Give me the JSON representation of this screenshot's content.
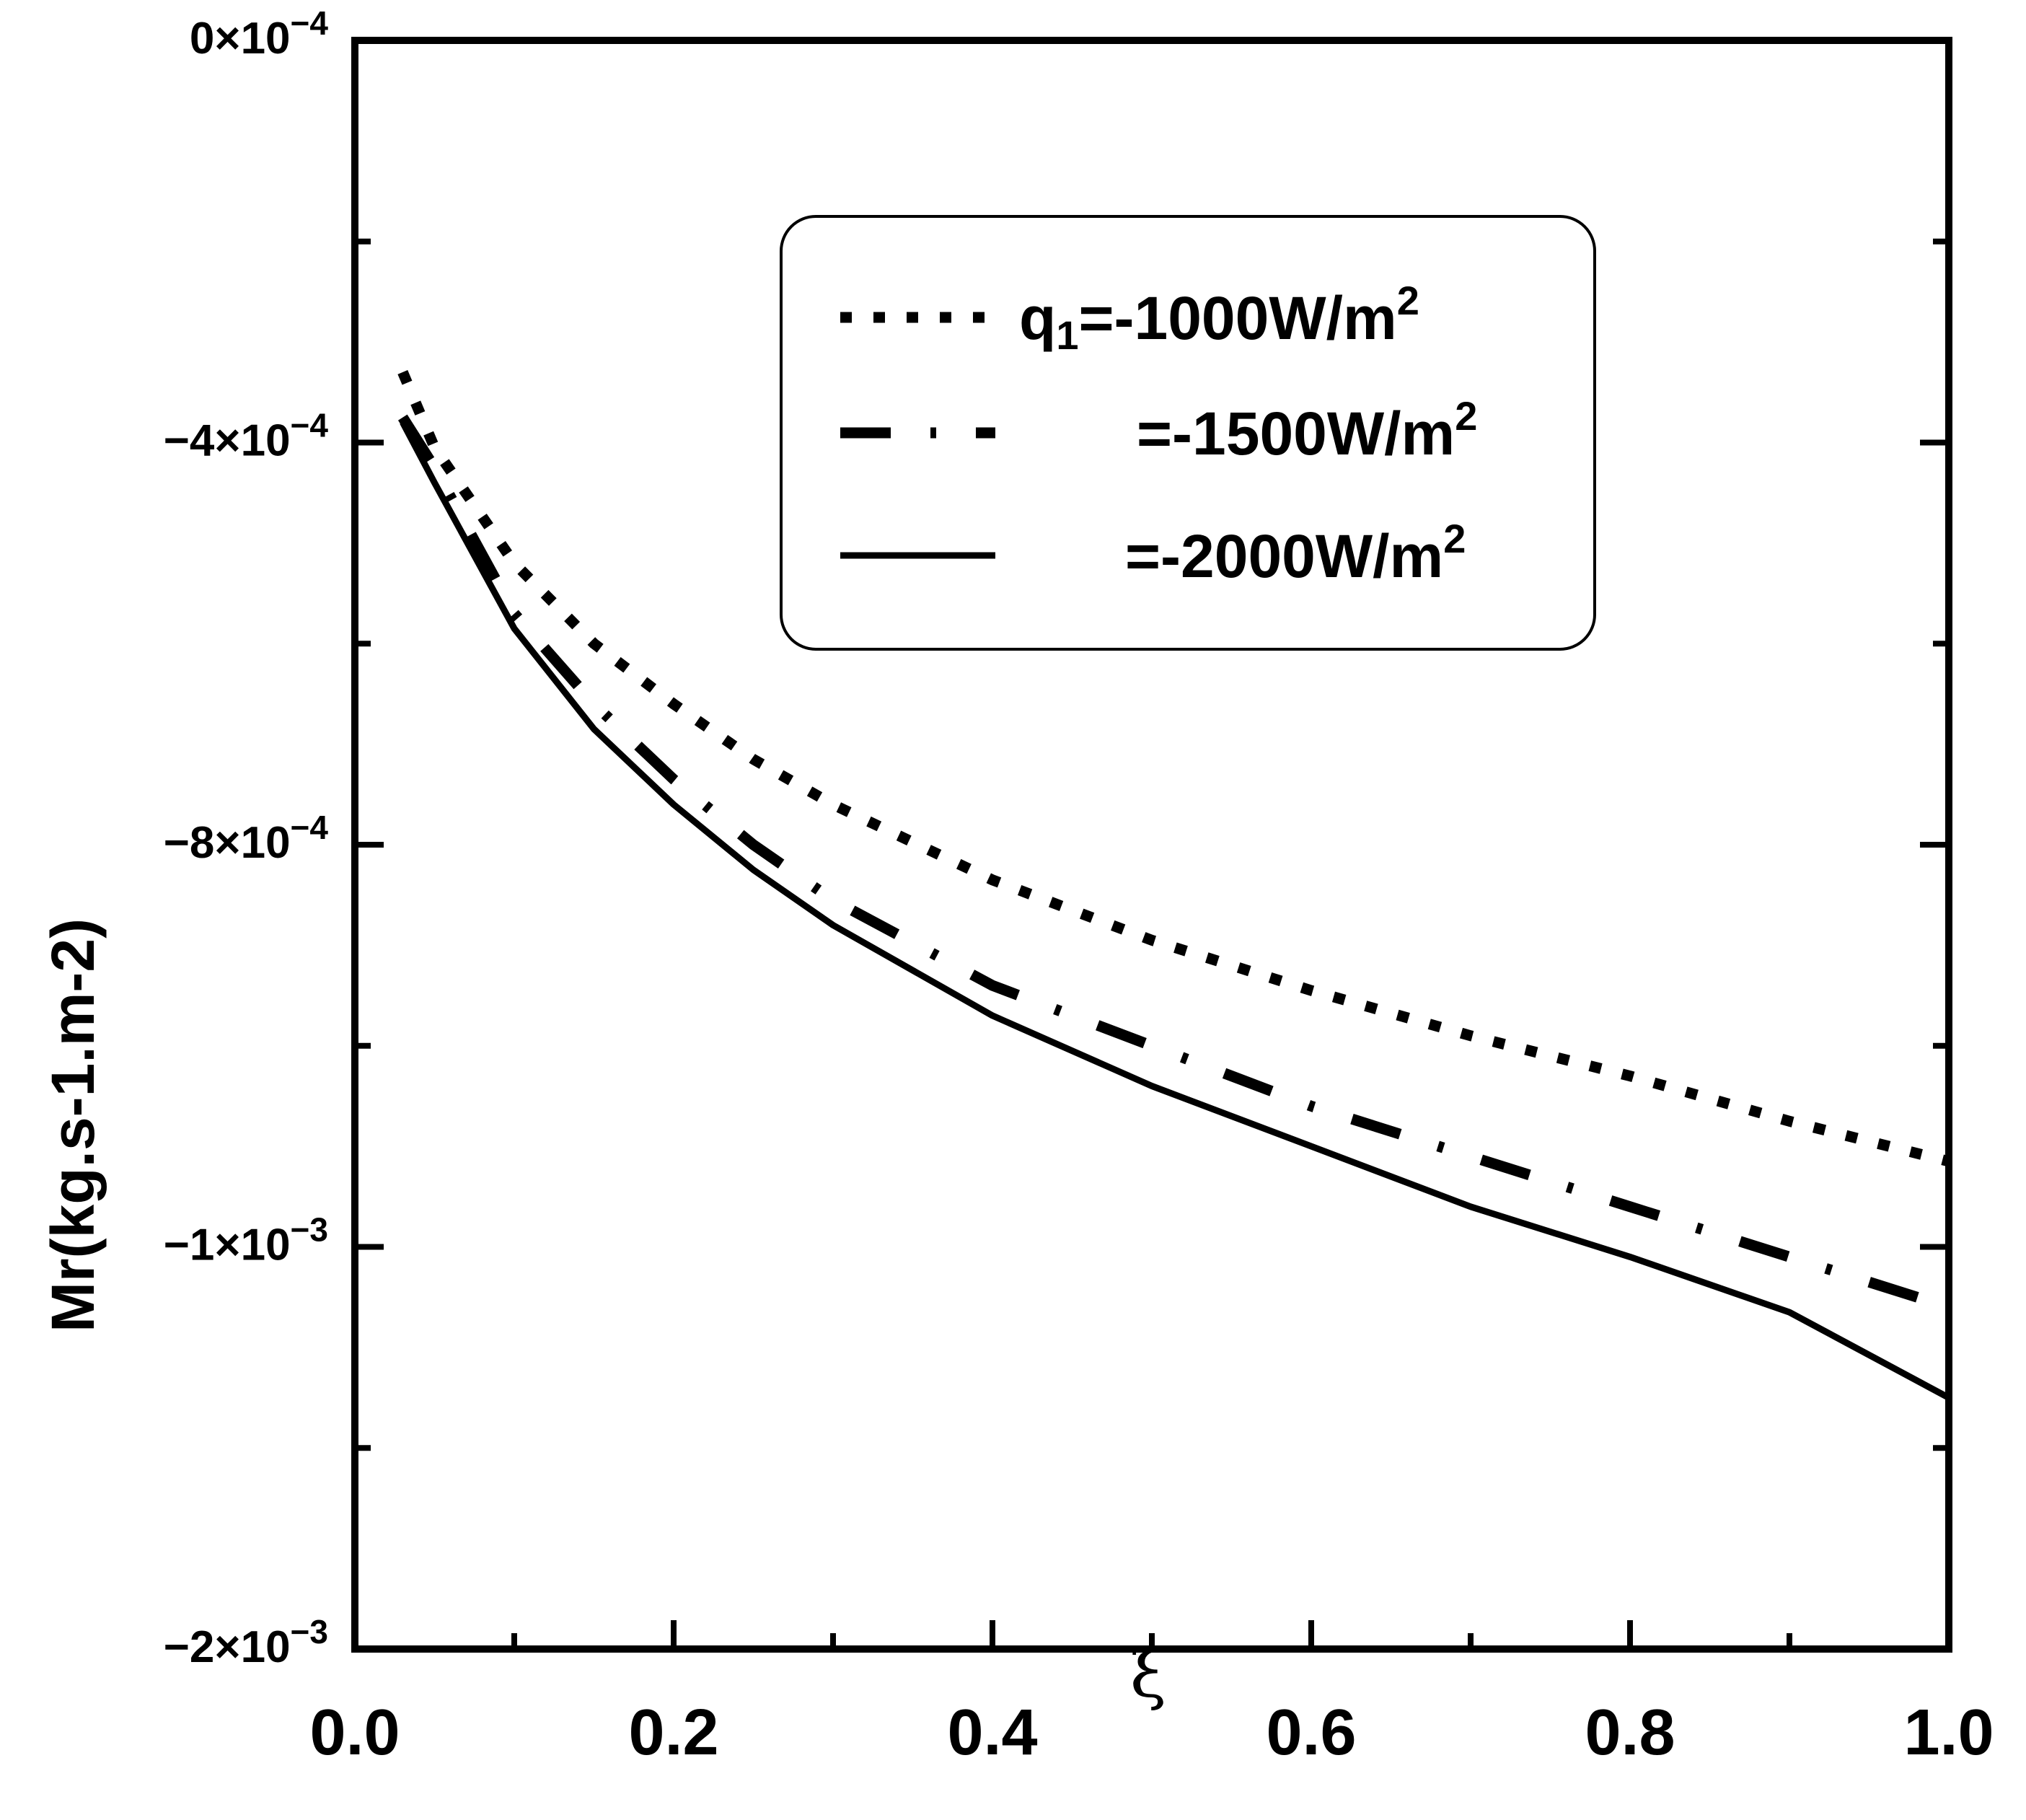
{
  "chart_data": {
    "type": "line",
    "title": "",
    "xlabel": "ξ",
    "ylabel": "Mr(kg.s-1.m-2)",
    "xlim": [
      0,
      1
    ],
    "ylim": [
      -0.0016,
      0
    ],
    "x_ticks": [
      "0.0",
      "0.2",
      "0.4",
      "0.6",
      "0.8",
      "1.0"
    ],
    "y_ticks": [
      {
        "value": 0,
        "label_prefix": "0×10",
        "label_exp": "−4"
      },
      {
        "value": -0.0004,
        "label_prefix": "−4×10",
        "label_exp": "−4"
      },
      {
        "value": -0.0008,
        "label_prefix": "−8×10",
        "label_exp": "−4"
      },
      {
        "value": -0.0012,
        "label_prefix": "−1×10",
        "label_exp": "−3"
      },
      {
        "value": -0.0016,
        "label_prefix": "−2×10",
        "label_exp": "−3"
      }
    ],
    "x": [
      0.03,
      0.05,
      0.1,
      0.15,
      0.2,
      0.25,
      0.3,
      0.4,
      0.5,
      0.6,
      0.7,
      0.8,
      0.9,
      1.0
    ],
    "series": [
      {
        "name": "q1=-1000W/m2",
        "style": "dotted",
        "values": [
          -0.00033,
          -0.000405,
          -0.00052,
          -0.0006,
          -0.00066,
          -0.000715,
          -0.00076,
          -0.000835,
          -0.000895,
          -0.000945,
          -0.00099,
          -0.00103,
          -0.001075,
          -0.001115
        ]
      },
      {
        "name": "=-1500W/m2",
        "style": "dashdot",
        "values": [
          -0.000375,
          -0.000425,
          -0.00057,
          -0.00066,
          -0.000735,
          -0.0008,
          -0.000855,
          -0.00094,
          -0.001,
          -0.00106,
          -0.00111,
          -0.00116,
          -0.00121,
          -0.00126
        ]
      },
      {
        "name": "=-2000W/m2",
        "style": "solid",
        "values": [
          -0.00038,
          -0.00044,
          -0.000585,
          -0.000685,
          -0.00076,
          -0.000825,
          -0.00088,
          -0.00097,
          -0.00104,
          -0.0011,
          -0.00116,
          -0.00121,
          -0.001265,
          -0.00135
        ]
      }
    ],
    "legend": {
      "placement": "top-right",
      "entries": [
        {
          "style": "dotted",
          "prefix": "q",
          "sub": "1",
          "text": "=-1000W/m",
          "sup": "2"
        },
        {
          "style": "dashdot",
          "prefix": "",
          "sub": "",
          "text": "=-1500W/m",
          "sup": "2"
        },
        {
          "style": "solid",
          "prefix": "",
          "sub": "",
          "text": "=-2000W/m",
          "sup": "2"
        }
      ]
    }
  }
}
